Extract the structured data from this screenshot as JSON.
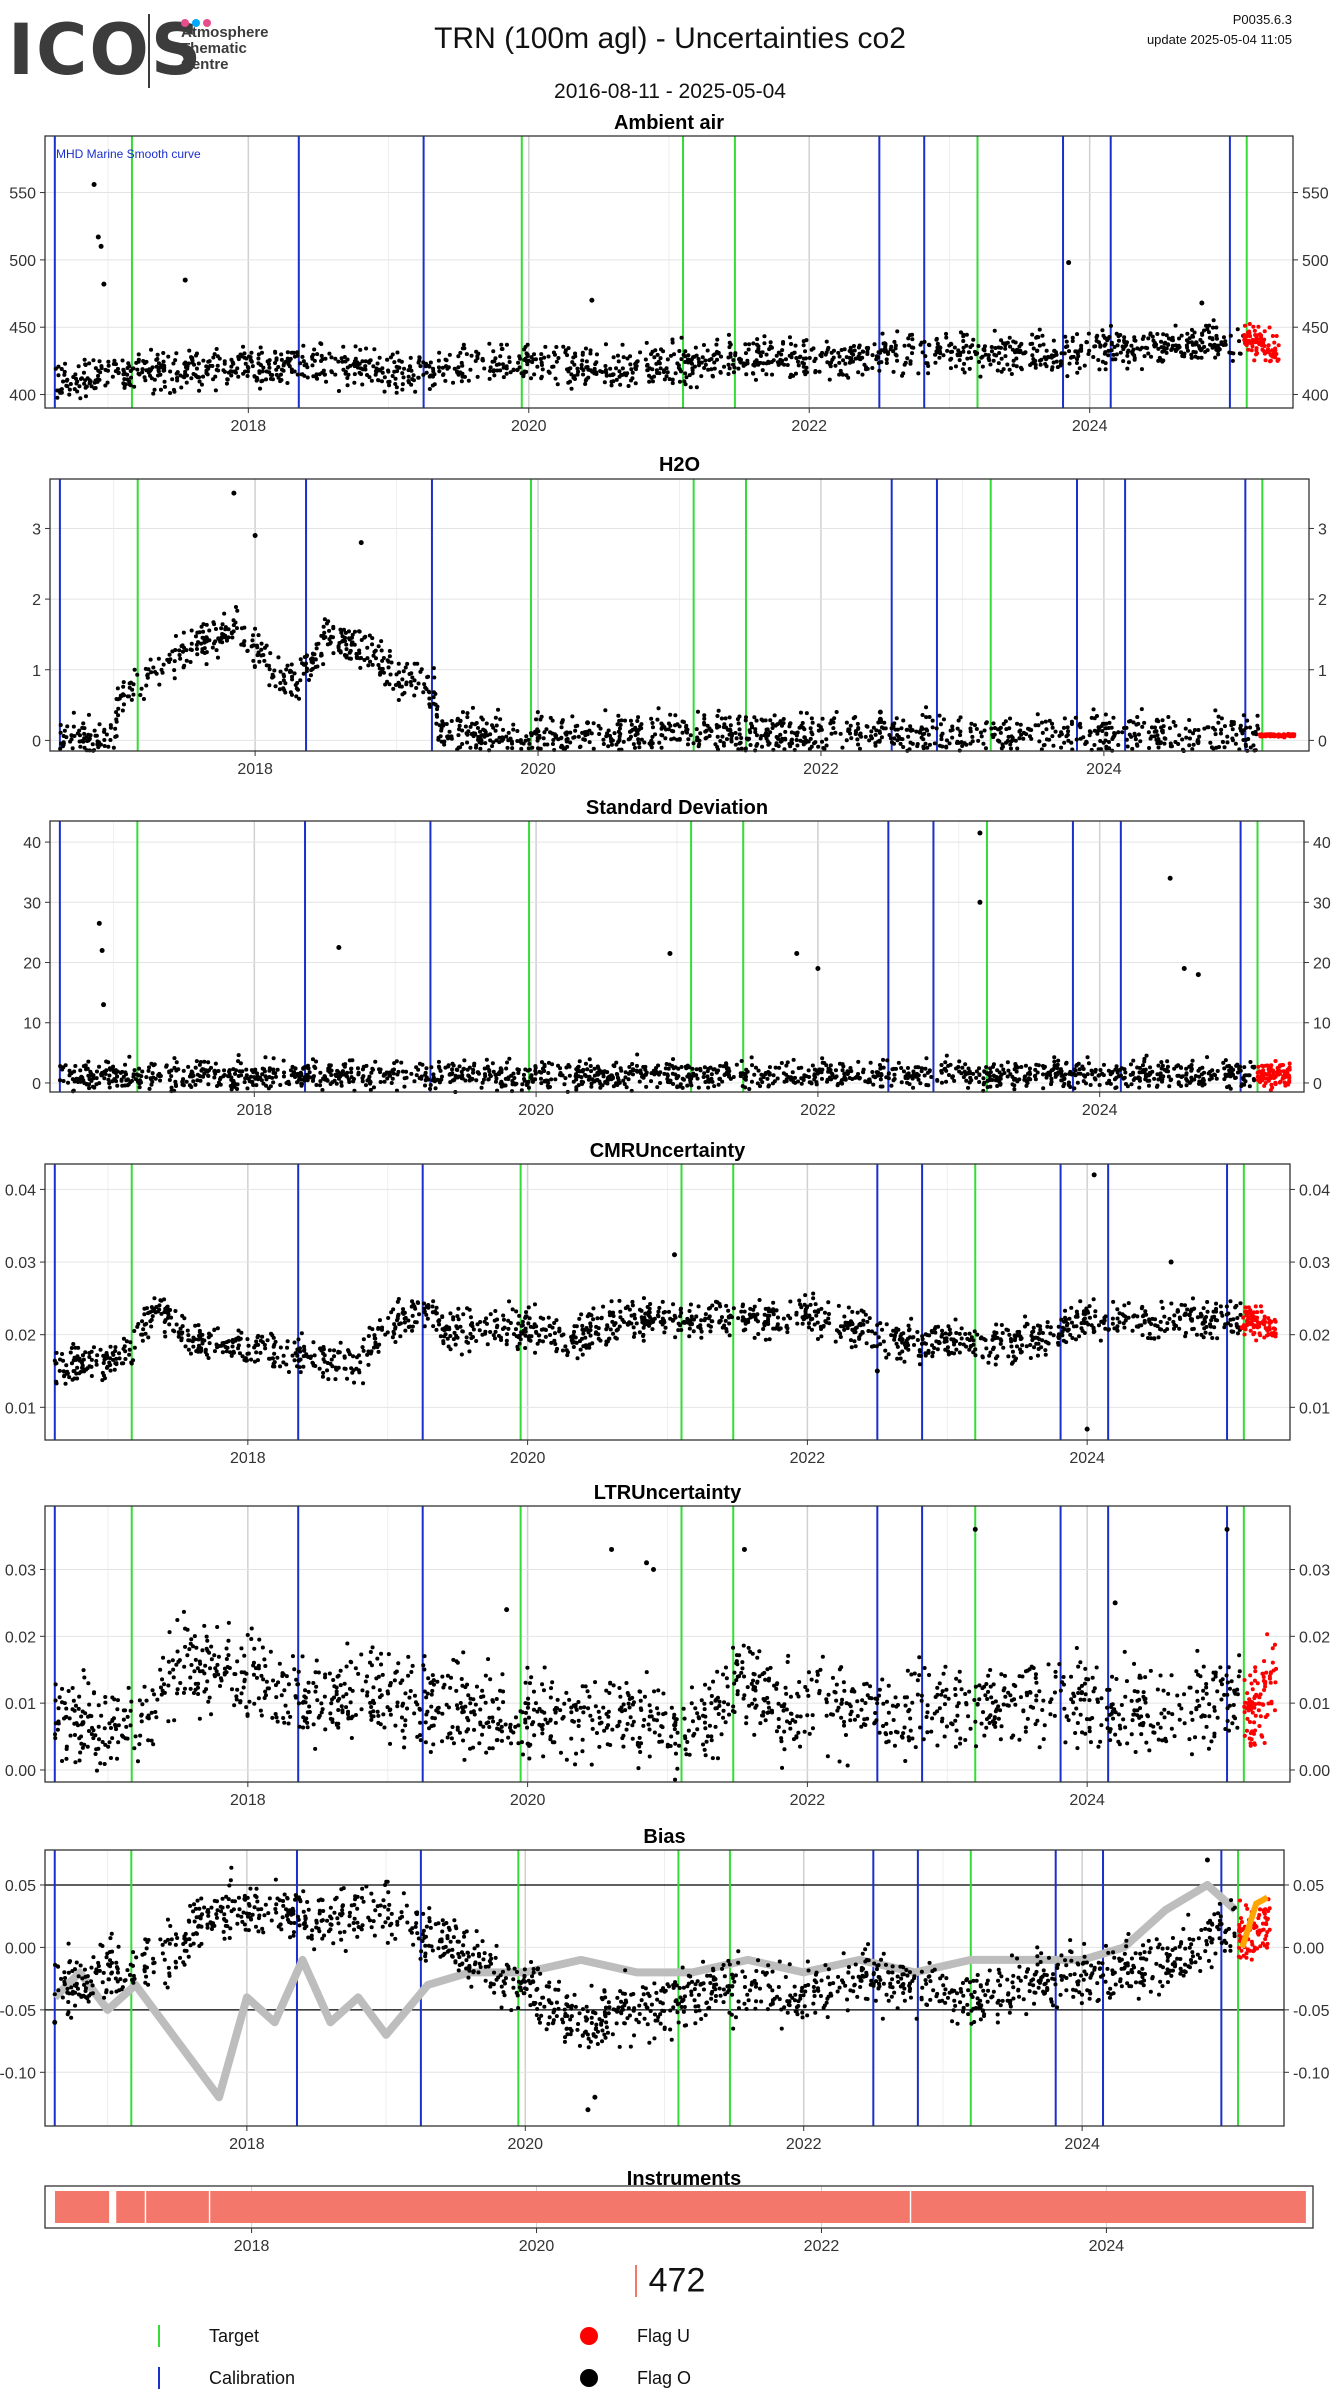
{
  "header": {
    "logo": {
      "brand": "ICOS",
      "line1": "Atmosphere",
      "line2": "Thematic",
      "line3": "Centre",
      "dot_colors": [
        "#e74c8b",
        "#00aaff",
        "#e74c8b"
      ]
    },
    "title": "TRN  (100m agl) - Uncertainties co2",
    "date_range": "2016-08-11 - 2025-05-04",
    "version": "P0035.6.3",
    "update": "update  2025-05-04 11:05"
  },
  "colors": {
    "target": "#33dd33",
    "calibration": "#1a2fcc",
    "flag_u": "#ff0000",
    "flag_o": "#000000",
    "smooth": "#bdbdbd",
    "instrument": "#f4776b",
    "grid": "#dddddd",
    "bias_orange": "#ffa500"
  },
  "chart_data": [
    {
      "id": "ambient",
      "type": "scatter",
      "title": "Ambient air",
      "annotation": "MHD Marine Smooth curve",
      "xlim": [
        2016.55,
        2025.45
      ],
      "ylim": [
        390,
        592
      ],
      "yticks": [
        400,
        450,
        500,
        550
      ],
      "ytick_labels": [
        "400",
        "450",
        "500",
        "550"
      ],
      "xticks": [
        2018,
        2020,
        2022,
        2024
      ],
      "xtick_labels": [
        "2018",
        "2020",
        "2022",
        "2024"
      ],
      "series": [
        {
          "name": "Flag O",
          "trend": [
            [
              2016.62,
              410
            ],
            [
              2017,
              415
            ],
            [
              2017.5,
              418
            ],
            [
              2018,
              420
            ],
            [
              2018.5,
              422
            ],
            [
              2019,
              416
            ],
            [
              2019.5,
              420
            ],
            [
              2020,
              424
            ],
            [
              2020.5,
              418
            ],
            [
              2021,
              422
            ],
            [
              2021.5,
              428
            ],
            [
              2022,
              424
            ],
            [
              2022.5,
              430
            ],
            [
              2023,
              432
            ],
            [
              2023.5,
              430
            ],
            [
              2024,
              434
            ],
            [
              2024.5,
              436
            ],
            [
              2025.1,
              438
            ]
          ],
          "spread": 22
        },
        {
          "name": "Flag U",
          "trend": [
            [
              2025.1,
              440
            ],
            [
              2025.35,
              434
            ]
          ],
          "spread": 18
        }
      ],
      "outliers": [
        [
          2016.9,
          556
        ],
        [
          2016.93,
          517
        ],
        [
          2016.95,
          510
        ],
        [
          2016.97,
          482
        ],
        [
          2017.55,
          485
        ],
        [
          2020.45,
          470
        ],
        [
          2023.85,
          498
        ],
        [
          2024.8,
          468
        ]
      ]
    },
    {
      "id": "h2o",
      "type": "scatter",
      "title": "H2O",
      "xlim": [
        2016.55,
        2025.45
      ],
      "ylim": [
        -0.15,
        3.7
      ],
      "yticks": [
        0,
        1,
        2,
        3
      ],
      "ytick_labels": [
        "0",
        "1",
        "2",
        "3"
      ],
      "xticks": [
        2018,
        2020,
        2022,
        2024
      ],
      "xtick_labels": [
        "2018",
        "2020",
        "2022",
        "2024"
      ],
      "series": [
        {
          "name": "Flag O",
          "trend": [
            [
              2016.62,
              0.0
            ],
            [
              2017.0,
              0.0
            ],
            [
              2017.05,
              0.6
            ],
            [
              2017.3,
              0.9
            ],
            [
              2017.6,
              1.4
            ],
            [
              2017.9,
              1.6
            ],
            [
              2018.1,
              1.0
            ],
            [
              2018.3,
              0.8
            ],
            [
              2018.5,
              1.5
            ],
            [
              2018.75,
              1.3
            ],
            [
              2019.0,
              0.9
            ],
            [
              2019.27,
              0.7
            ],
            [
              2019.3,
              0.07
            ],
            [
              2022.4,
              0.08
            ],
            [
              2025.1,
              0.07
            ]
          ],
          "spread": 0.45
        },
        {
          "name": "Flag U",
          "trend": [
            [
              2025.1,
              0.07
            ],
            [
              2025.35,
              0.07
            ]
          ],
          "spread": 0.03
        }
      ],
      "outliers": [
        [
          2017.85,
          3.5
        ],
        [
          2018.0,
          2.9
        ],
        [
          2018.75,
          2.8
        ],
        [
          2020.35,
          0.25
        ],
        [
          2022.42,
          0.4
        ],
        [
          2022.42,
          0.3
        ]
      ]
    },
    {
      "id": "std",
      "type": "scatter",
      "title": "Standard Deviation",
      "xlim": [
        2016.55,
        2025.45
      ],
      "ylim": [
        -1.5,
        43.5
      ],
      "yticks": [
        0,
        10,
        20,
        30,
        40
      ],
      "ytick_labels": [
        "0",
        "10",
        "20",
        "30",
        "40"
      ],
      "xticks": [
        2018,
        2020,
        2022,
        2024
      ],
      "xtick_labels": [
        "2018",
        "2020",
        "2022",
        "2024"
      ],
      "series": [
        {
          "name": "Flag O",
          "trend": [
            [
              2016.62,
              1.2
            ],
            [
              2025.1,
              1.5
            ]
          ],
          "spread": 3.5
        },
        {
          "name": "Flag U",
          "trend": [
            [
              2025.12,
              1.5
            ],
            [
              2025.35,
              1.5
            ]
          ],
          "spread": 3.0
        }
      ],
      "outliers": [
        [
          2016.9,
          26.5
        ],
        [
          2016.92,
          22
        ],
        [
          2016.93,
          13
        ],
        [
          2018.6,
          22.5
        ],
        [
          2020.95,
          21.5
        ],
        [
          2021.85,
          21.5
        ],
        [
          2022.0,
          19
        ],
        [
          2023.15,
          41.5
        ],
        [
          2023.15,
          30
        ],
        [
          2024.5,
          34
        ],
        [
          2024.6,
          19
        ],
        [
          2024.7,
          18
        ]
      ]
    },
    {
      "id": "cmr",
      "type": "scatter",
      "title": "CMRUncertainty",
      "xlim": [
        2016.55,
        2025.45
      ],
      "ylim": [
        0.0055,
        0.0435
      ],
      "yticks": [
        0.01,
        0.02,
        0.03,
        0.04
      ],
      "ytick_labels": [
        "0.01",
        "0.02",
        "0.03",
        "0.04"
      ],
      "xticks": [
        2018,
        2020,
        2022,
        2024
      ],
      "xtick_labels": [
        "2018",
        "2020",
        "2022",
        "2024"
      ],
      "series": [
        {
          "name": "Flag O",
          "trend": [
            [
              2016.62,
              0.016
            ],
            [
              2017.0,
              0.016
            ],
            [
              2017.2,
              0.019
            ],
            [
              2017.35,
              0.024
            ],
            [
              2017.6,
              0.019
            ],
            [
              2018,
              0.018
            ],
            [
              2018.5,
              0.017
            ],
            [
              2018.8,
              0.016
            ],
            [
              2019.0,
              0.021
            ],
            [
              2019.3,
              0.024
            ],
            [
              2019.4,
              0.021
            ],
            [
              2020,
              0.021
            ],
            [
              2020.3,
              0.019
            ],
            [
              2020.6,
              0.022
            ],
            [
              2021.5,
              0.022
            ],
            [
              2022.0,
              0.023
            ],
            [
              2022.4,
              0.021
            ],
            [
              2022.6,
              0.019
            ],
            [
              2023.5,
              0.019
            ],
            [
              2023.8,
              0.02
            ],
            [
              2023.9,
              0.022
            ],
            [
              2025.1,
              0.022
            ]
          ],
          "spread": 0.004
        },
        {
          "name": "Flag U",
          "trend": [
            [
              2025.1,
              0.022
            ],
            [
              2025.35,
              0.021
            ]
          ],
          "spread": 0.003
        }
      ],
      "outliers": [
        [
          2021.05,
          0.031
        ],
        [
          2022.5,
          0.015
        ],
        [
          2024.05,
          0.042
        ],
        [
          2024.0,
          0.007
        ],
        [
          2024.6,
          0.03
        ]
      ]
    },
    {
      "id": "ltr",
      "type": "scatter",
      "title": "LTRUncertainty",
      "xlim": [
        2016.55,
        2025.45
      ],
      "ylim": [
        -0.0018,
        0.0395
      ],
      "yticks": [
        0.0,
        0.01,
        0.02,
        0.03
      ],
      "ytick_labels": [
        "0.00",
        "0.01",
        "0.02",
        "0.03"
      ],
      "xticks": [
        2018,
        2020,
        2022,
        2024
      ],
      "xtick_labels": [
        "2018",
        "2020",
        "2022",
        "2024"
      ],
      "series": [
        {
          "name": "Flag O",
          "trend": [
            [
              2016.62,
              0.008
            ],
            [
              2017.0,
              0.006
            ],
            [
              2017.3,
              0.006
            ],
            [
              2017.5,
              0.016
            ],
            [
              2017.9,
              0.015
            ],
            [
              2018.3,
              0.011
            ],
            [
              2019,
              0.011
            ],
            [
              2019.5,
              0.009
            ],
            [
              2020,
              0.008
            ],
            [
              2020.5,
              0.009
            ],
            [
              2021.0,
              0.005
            ],
            [
              2021.3,
              0.007
            ],
            [
              2021.5,
              0.015
            ],
            [
              2021.8,
              0.009
            ],
            [
              2022.2,
              0.01
            ],
            [
              2022.6,
              0.008
            ],
            [
              2023,
              0.01
            ],
            [
              2023.5,
              0.011
            ],
            [
              2024,
              0.01
            ],
            [
              2024.5,
              0.009
            ],
            [
              2025.1,
              0.011
            ]
          ],
          "spread": 0.01
        },
        {
          "name": "Flag U",
          "trend": [
            [
              2025.12,
              0.008
            ],
            [
              2025.35,
              0.013
            ]
          ],
          "spread": 0.01
        }
      ],
      "outliers": [
        [
          2019.85,
          0.024
        ],
        [
          2020.6,
          0.033
        ],
        [
          2020.85,
          0.031
        ],
        [
          2020.9,
          0.03
        ],
        [
          2021.55,
          0.033
        ],
        [
          2023.2,
          0.036
        ],
        [
          2024.2,
          0.025
        ],
        [
          2025.0,
          0.036
        ]
      ]
    },
    {
      "id": "bias",
      "type": "line",
      "title": "Bias",
      "xlim": [
        2016.55,
        2025.45
      ],
      "ylim": [
        -0.143,
        0.078
      ],
      "yticks": [
        -0.1,
        -0.05,
        0.0,
        0.05
      ],
      "ytick_labels": [
        "-0.10",
        "-0.05",
        "0.00",
        "0.05"
      ],
      "xticks": [
        2018,
        2020,
        2022,
        2024
      ],
      "xtick_labels": [
        "2018",
        "2020",
        "2022",
        "2024"
      ],
      "hlines": [
        -0.05,
        0.05
      ],
      "smooth_curve": [
        [
          2016.62,
          -0.04
        ],
        [
          2016.8,
          -0.02
        ],
        [
          2017.0,
          -0.05
        ],
        [
          2017.2,
          -0.03
        ],
        [
          2017.4,
          -0.06
        ],
        [
          2017.6,
          -0.09
        ],
        [
          2017.8,
          -0.12
        ],
        [
          2018.0,
          -0.04
        ],
        [
          2018.2,
          -0.06
        ],
        [
          2018.4,
          -0.01
        ],
        [
          2018.6,
          -0.06
        ],
        [
          2018.8,
          -0.04
        ],
        [
          2019.0,
          -0.07
        ],
        [
          2019.3,
          -0.03
        ],
        [
          2019.6,
          -0.02
        ],
        [
          2020.0,
          -0.02
        ],
        [
          2020.4,
          -0.01
        ],
        [
          2020.8,
          -0.02
        ],
        [
          2021.2,
          -0.02
        ],
        [
          2021.6,
          -0.01
        ],
        [
          2022.0,
          -0.02
        ],
        [
          2022.4,
          -0.01
        ],
        [
          2022.8,
          -0.02
        ],
        [
          2023.2,
          -0.01
        ],
        [
          2023.6,
          -0.01
        ],
        [
          2024.0,
          -0.01
        ],
        [
          2024.3,
          0.0
        ],
        [
          2024.6,
          0.03
        ],
        [
          2024.9,
          0.05
        ],
        [
          2025.1,
          0.03
        ]
      ],
      "series": [
        {
          "name": "Flag O",
          "trend": [
            [
              2016.62,
              -0.03
            ],
            [
              2017.0,
              -0.02
            ],
            [
              2017.4,
              -0.01
            ],
            [
              2017.8,
              0.03
            ],
            [
              2018.2,
              0.03
            ],
            [
              2018.6,
              0.02
            ],
            [
              2019.0,
              0.03
            ],
            [
              2019.3,
              0.01
            ],
            [
              2019.6,
              -0.01
            ],
            [
              2020.0,
              -0.03
            ],
            [
              2020.4,
              -0.06
            ],
            [
              2020.8,
              -0.05
            ],
            [
              2021.2,
              -0.04
            ],
            [
              2021.6,
              -0.03
            ],
            [
              2022.0,
              -0.04
            ],
            [
              2022.4,
              -0.02
            ],
            [
              2022.8,
              -0.03
            ],
            [
              2023.2,
              -0.04
            ],
            [
              2023.6,
              -0.03
            ],
            [
              2024.0,
              -0.02
            ],
            [
              2024.4,
              -0.02
            ],
            [
              2024.8,
              0.0
            ],
            [
              2025.1,
              0.02
            ]
          ],
          "spread": 0.035
        },
        {
          "name": "Flag U",
          "trend": [
            [
              2025.12,
              0.01
            ],
            [
              2025.35,
              0.02
            ]
          ],
          "spread": 0.03
        }
      ],
      "outliers": [
        [
          2020.45,
          -0.13
        ],
        [
          2020.5,
          -0.12
        ],
        [
          2016.62,
          -0.06
        ],
        [
          2024.9,
          0.07
        ]
      ]
    }
  ],
  "target_lines": [
    2017.17,
    2019.95,
    2021.1,
    2021.47,
    2023.2,
    2025.12
  ],
  "calibration_lines": [
    2016.62,
    2018.36,
    2019.25,
    2022.5,
    2022.82,
    2023.81,
    2024.15,
    2025.0
  ],
  "instruments": {
    "title": "Instruments",
    "xlim": [
      2016.55,
      2025.45
    ],
    "xticks": [
      2018,
      2020,
      2022,
      2024
    ],
    "xtick_labels": [
      "2018",
      "2020",
      "2022",
      "2024"
    ],
    "segments": [
      [
        2016.62,
        2017.0
      ],
      [
        2017.05,
        2017.25
      ],
      [
        2017.26,
        2017.7
      ],
      [
        2017.71,
        2022.62
      ],
      [
        2022.63,
        2025.4
      ]
    ]
  },
  "instrument_id": "472",
  "legend": {
    "target": "Target",
    "calibration": "Calibration",
    "flag_u": "Flag U",
    "flag_o": "Flag O"
  }
}
